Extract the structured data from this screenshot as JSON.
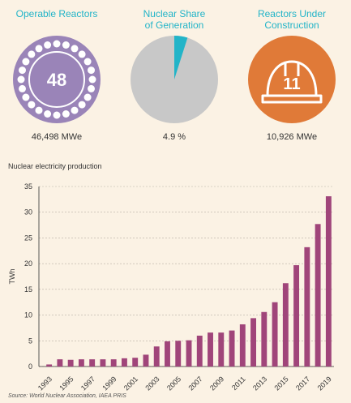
{
  "stats": {
    "operable": {
      "title": "Operable Reactors",
      "count": "48",
      "value": "46,498 MWe",
      "color": "#9a84b8"
    },
    "share": {
      "title_line1": "Nuclear Share",
      "title_line2": "of Generation",
      "value": "4.9 %",
      "percent": 4.9,
      "slice_color": "#22b4c8",
      "rest_color": "#c8c8c8"
    },
    "construction": {
      "title_line1": "Reactors Under",
      "title_line2": "Construction",
      "count": "11",
      "value": "10,926 MWe",
      "color": "#e07a38"
    }
  },
  "chart_caption": "Nuclear electricity production",
  "source": "Source: World Nuclear Association, IAEA PRIS",
  "chart_data": {
    "type": "bar",
    "ylabel": "TWh",
    "ylim": [
      0,
      35
    ],
    "yticks": [
      0,
      5,
      10,
      15,
      20,
      25,
      30,
      35
    ],
    "grid": true,
    "bar_color": "#a0457a",
    "categories": [
      "1993",
      "1994",
      "1995",
      "1996",
      "1997",
      "1998",
      "1999",
      "2000",
      "2001",
      "2002",
      "2003",
      "2004",
      "2005",
      "2006",
      "2007",
      "2008",
      "2009",
      "2010",
      "2011",
      "2012",
      "2013",
      "2014",
      "2015",
      "2016",
      "2017",
      "2018",
      "2019"
    ],
    "tick_labels": [
      "1993",
      "1995",
      "1997",
      "1999",
      "2001",
      "2003",
      "2005",
      "2007",
      "2009",
      "2011",
      "2013",
      "2015",
      "2017",
      "2019"
    ],
    "values": [
      0.4,
      1.4,
      1.3,
      1.4,
      1.4,
      1.4,
      1.4,
      1.6,
      1.7,
      2.3,
      3.9,
      4.9,
      5.0,
      5.1,
      6.0,
      6.6,
      6.6,
      7.0,
      8.2,
      9.4,
      10.6,
      12.5,
      16.2,
      19.7,
      23.2,
      27.7,
      33.1
    ]
  }
}
